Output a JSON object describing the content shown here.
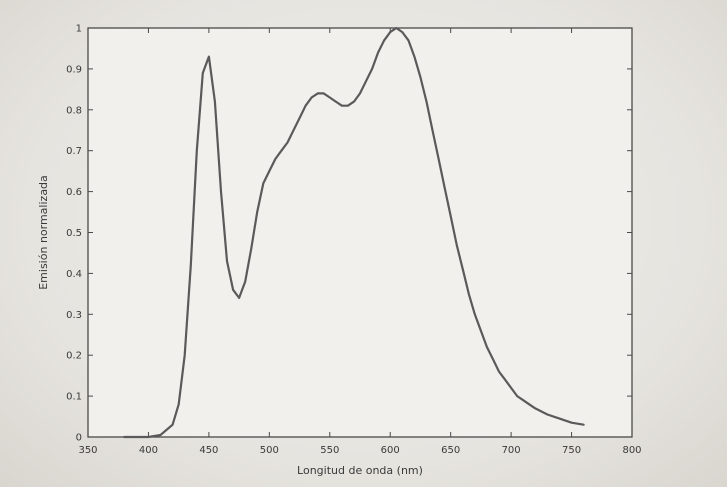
{
  "chart_data": {
    "type": "line",
    "title": "",
    "xlabel": "Longitud de onda (nm)",
    "ylabel": "Emisión normalizada",
    "xlim": [
      350,
      800
    ],
    "ylim": [
      0,
      1
    ],
    "x_ticks": [
      "350",
      "400",
      "450",
      "500",
      "550",
      "600",
      "650",
      "700",
      "750",
      "800"
    ],
    "y_ticks": [
      "0",
      "0.1",
      "0.2",
      "0.3",
      "0.4",
      "0.5",
      "0.6",
      "0.7",
      "0.8",
      "0.9",
      "1"
    ],
    "grid": false,
    "series": [
      {
        "color": "#5a5a5a",
        "x": [
          380,
          400,
          410,
          420,
          425,
          430,
          435,
          440,
          445,
          450,
          455,
          460,
          465,
          470,
          475,
          480,
          485,
          490,
          495,
          500,
          505,
          510,
          515,
          520,
          525,
          530,
          535,
          540,
          545,
          550,
          555,
          560,
          565,
          570,
          575,
          580,
          585,
          590,
          595,
          600,
          605,
          610,
          615,
          620,
          625,
          630,
          635,
          640,
          645,
          650,
          655,
          660,
          665,
          670,
          675,
          680,
          685,
          690,
          695,
          700,
          705,
          710,
          715,
          720,
          730,
          740,
          750,
          760
        ],
        "y": [
          0.0,
          0.0,
          0.005,
          0.03,
          0.08,
          0.2,
          0.42,
          0.7,
          0.89,
          0.93,
          0.82,
          0.6,
          0.43,
          0.36,
          0.34,
          0.38,
          0.46,
          0.55,
          0.62,
          0.65,
          0.68,
          0.7,
          0.72,
          0.75,
          0.78,
          0.81,
          0.83,
          0.84,
          0.84,
          0.83,
          0.82,
          0.81,
          0.81,
          0.82,
          0.84,
          0.87,
          0.9,
          0.94,
          0.97,
          0.99,
          1.0,
          0.99,
          0.97,
          0.93,
          0.88,
          0.82,
          0.75,
          0.68,
          0.61,
          0.54,
          0.47,
          0.41,
          0.35,
          0.3,
          0.26,
          0.22,
          0.19,
          0.16,
          0.14,
          0.12,
          0.1,
          0.09,
          0.08,
          0.07,
          0.055,
          0.045,
          0.035,
          0.03
        ]
      }
    ]
  }
}
